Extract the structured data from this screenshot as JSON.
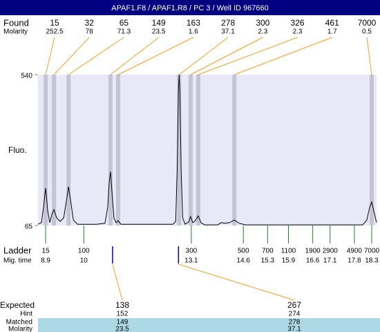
{
  "header": {
    "title": "APAF1.F8 / APAF1.R8 / PC 3 / Well ID 967660"
  },
  "chart_data": {
    "type": "electropherogram",
    "found_label": "Found",
    "molarity_label": "Molarity",
    "found": [
      {
        "size": 15,
        "molarity": 252.5,
        "mig_time": 8.9
      },
      {
        "size": 32,
        "molarity": 78,
        "mig_time": 9.14
      },
      {
        "size": 65,
        "molarity": 71.3,
        "mig_time": 9.56
      },
      {
        "size": 149,
        "molarity": 23.5,
        "mig_time": 10.77
      },
      {
        "size": 163,
        "molarity": 1.6,
        "mig_time": 10.99
      },
      {
        "size": 278,
        "molarity": 37.1,
        "mig_time": 12.75
      },
      {
        "size": 300,
        "molarity": 2.3,
        "mig_time": 13.08
      },
      {
        "size": 326,
        "molarity": 2.3,
        "mig_time": 13.3
      },
      {
        "size": 461,
        "molarity": 1.7,
        "mig_time": 14.34
      },
      {
        "size": 7000,
        "molarity": 0.5,
        "mig_time": 18.3
      }
    ],
    "y_label": "Fluo.",
    "xlim": [
      8.68,
      18.44
    ],
    "ylim": [
      65,
      540
    ],
    "yticks": [
      65,
      540
    ],
    "trace": {
      "color": "#000000",
      "x": [
        8.68,
        8.78,
        8.84,
        8.9,
        8.96,
        9.02,
        9.08,
        9.14,
        9.22,
        9.32,
        9.42,
        9.5,
        9.56,
        9.62,
        9.7,
        9.82,
        10.37,
        10.61,
        10.69,
        10.73,
        10.77,
        10.81,
        10.87,
        10.93,
        10.99,
        11.07,
        12.57,
        12.65,
        12.69,
        12.73,
        12.75,
        12.77,
        12.81,
        12.85,
        12.92,
        13.02,
        13.08,
        13.14,
        13.2,
        13.3,
        13.38,
        13.48,
        13.86,
        13.96,
        14.08,
        14.2,
        14.34,
        14.48,
        14.66,
        18.04,
        18.16,
        18.24,
        18.3,
        18.36,
        18.44
      ],
      "values": [
        69,
        74,
        122,
        183,
        111,
        74,
        100,
        115,
        89,
        78,
        89,
        143,
        187,
        143,
        82,
        69,
        69,
        72,
        122,
        198,
        235,
        176,
        89,
        74,
        80,
        69,
        69,
        78,
        231,
        492,
        540,
        492,
        231,
        89,
        69,
        76,
        93,
        74,
        78,
        95,
        74,
        67,
        67,
        74,
        72,
        74,
        82,
        72,
        67,
        67,
        82,
        122,
        139,
        111,
        74
      ]
    },
    "ladder_label": "Ladder",
    "mig_time_label": "Mig. time",
    "ladder": [
      {
        "size": 15,
        "mig_time": 8.9
      },
      {
        "size": 100,
        "mig_time": 10
      },
      {
        "size": 300,
        "mig_time": 13.1
      },
      {
        "size": 500,
        "mig_time": 14.6
      },
      {
        "size": 700,
        "mig_time": 15.3
      },
      {
        "size": 1100,
        "mig_time": 15.9
      },
      {
        "size": 1900,
        "mig_time": 16.6
      },
      {
        "size": 2900,
        "mig_time": 17.1
      },
      {
        "size": 4900,
        "mig_time": 17.8
      },
      {
        "size": 7000,
        "mig_time": 18.3
      }
    ],
    "expected": {
      "labels": [
        "Expected",
        "Hint",
        "Matched",
        "Molarity"
      ],
      "peaks": [
        {
          "expected": 138,
          "hint": 152,
          "matched": 149,
          "molarity": 23.5,
          "mig_time": 10.83
        },
        {
          "expected": 267,
          "hint": 274,
          "matched": 278,
          "molarity": 37.1,
          "mig_time": 12.73
        }
      ]
    }
  }
}
